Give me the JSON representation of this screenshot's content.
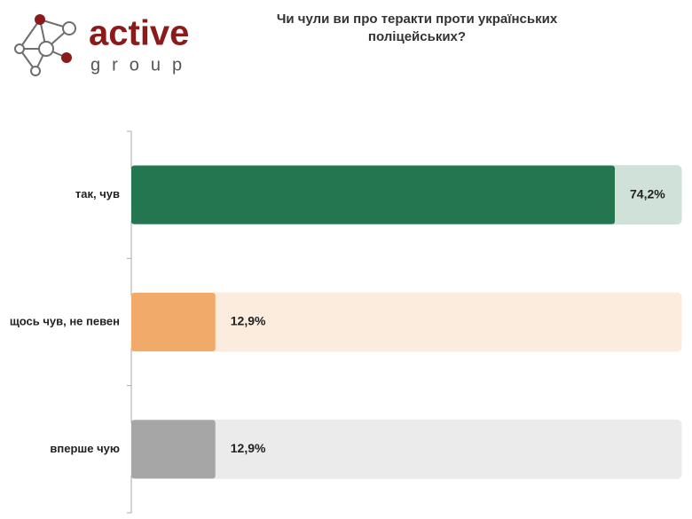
{
  "logo": {
    "name": "active",
    "tagline": "group"
  },
  "chart_data": {
    "type": "bar",
    "orientation": "horizontal",
    "title": "Чи чули ви про теракти проти українських поліцейських?",
    "categories": [
      "так, чув",
      "щось чув, не певен",
      "вперше чую"
    ],
    "values": [
      74.2,
      12.9,
      12.9
    ],
    "value_labels": [
      "74,2%",
      "12,9%",
      "12,9%"
    ],
    "colors": [
      "#247650",
      "#f2aa6b",
      "#a6a6a6"
    ]
  }
}
